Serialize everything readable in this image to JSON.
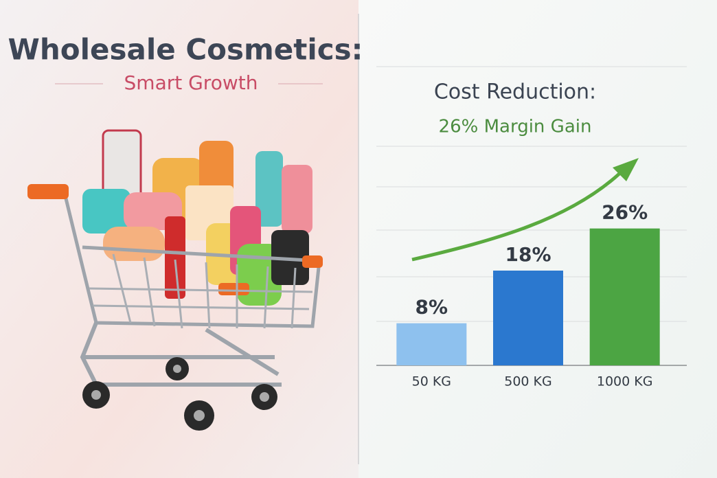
{
  "header": {
    "title": "Wholesale Cosmetics:",
    "subtitle": "Smart Growth"
  },
  "chart_data": {
    "type": "bar",
    "title": "Cost Reduction:",
    "subtitle": "26% Margin Gain",
    "categories": [
      "50 KG",
      "500 KG",
      "1000 KG"
    ],
    "values": [
      8,
      18,
      26
    ],
    "value_labels": [
      "8%",
      "18%",
      "26%"
    ],
    "colors": [
      "#8ec1ee",
      "#2b78cf",
      "#4ca543"
    ],
    "ylim": [
      0,
      30
    ]
  }
}
